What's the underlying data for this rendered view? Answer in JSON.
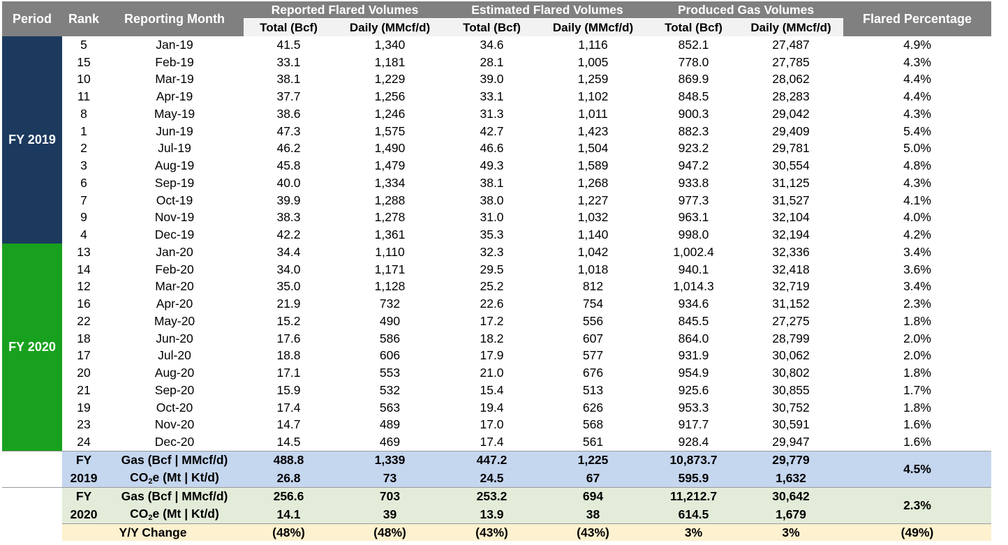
{
  "headers": {
    "period": "Period",
    "rank": "Rank",
    "month": "Reporting Month",
    "reported": "Reported Flared Volumes",
    "estimated": "Estimated Flared Volumes",
    "produced": "Produced Gas Volumes",
    "flared_pct": "Flared Percentage",
    "total": "Total (Bcf)",
    "daily": "Daily (MMcf/d)"
  },
  "periods": {
    "fy2019": "FY 2019",
    "fy2020": "FY 2020"
  },
  "colors": {
    "fy2019": "#1c3a5e",
    "fy2020": "#18a11e",
    "header": "#808080",
    "sum2019": "#c5d6ef",
    "sum2020": "#e3ecd9",
    "yoy": "#fdf1cf"
  },
  "rows2019": [
    [
      "5",
      "Jan-19",
      "41.5",
      "1,340",
      "34.6",
      "1,116",
      "852.1",
      "27,487",
      "4.9%"
    ],
    [
      "15",
      "Feb-19",
      "33.1",
      "1,181",
      "28.1",
      "1,005",
      "778.0",
      "27,785",
      "4.3%"
    ],
    [
      "10",
      "Mar-19",
      "38.1",
      "1,229",
      "39.0",
      "1,259",
      "869.9",
      "28,062",
      "4.4%"
    ],
    [
      "11",
      "Apr-19",
      "37.7",
      "1,256",
      "33.1",
      "1,102",
      "848.5",
      "28,283",
      "4.4%"
    ],
    [
      "8",
      "May-19",
      "38.6",
      "1,246",
      "31.3",
      "1,011",
      "900.3",
      "29,042",
      "4.3%"
    ],
    [
      "1",
      "Jun-19",
      "47.3",
      "1,575",
      "42.7",
      "1,423",
      "882.3",
      "29,409",
      "5.4%"
    ],
    [
      "2",
      "Jul-19",
      "46.2",
      "1,490",
      "46.6",
      "1,504",
      "923.2",
      "29,781",
      "5.0%"
    ],
    [
      "3",
      "Aug-19",
      "45.8",
      "1,479",
      "49.3",
      "1,589",
      "947.2",
      "30,554",
      "4.8%"
    ],
    [
      "6",
      "Sep-19",
      "40.0",
      "1,334",
      "38.1",
      "1,268",
      "933.8",
      "31,125",
      "4.3%"
    ],
    [
      "7",
      "Oct-19",
      "39.9",
      "1,288",
      "38.0",
      "1,227",
      "977.3",
      "31,527",
      "4.1%"
    ],
    [
      "9",
      "Nov-19",
      "38.3",
      "1,278",
      "31.0",
      "1,032",
      "963.1",
      "32,104",
      "4.0%"
    ],
    [
      "4",
      "Dec-19",
      "42.2",
      "1,361",
      "35.3",
      "1,140",
      "998.0",
      "32,194",
      "4.2%"
    ]
  ],
  "rows2020": [
    [
      "13",
      "Jan-20",
      "34.4",
      "1,110",
      "32.3",
      "1,042",
      "1,002.4",
      "32,336",
      "3.4%"
    ],
    [
      "14",
      "Feb-20",
      "34.0",
      "1,171",
      "29.5",
      "1,018",
      "940.1",
      "32,418",
      "3.6%"
    ],
    [
      "12",
      "Mar-20",
      "35.0",
      "1,128",
      "25.2",
      "812",
      "1,014.3",
      "32,719",
      "3.4%"
    ],
    [
      "16",
      "Apr-20",
      "21.9",
      "732",
      "22.6",
      "754",
      "934.6",
      "31,152",
      "2.3%"
    ],
    [
      "22",
      "May-20",
      "15.2",
      "490",
      "17.2",
      "556",
      "845.5",
      "27,275",
      "1.8%"
    ],
    [
      "18",
      "Jun-20",
      "17.6",
      "586",
      "18.2",
      "607",
      "864.0",
      "28,799",
      "2.0%"
    ],
    [
      "17",
      "Jul-20",
      "18.8",
      "606",
      "17.9",
      "577",
      "931.9",
      "30,062",
      "2.0%"
    ],
    [
      "20",
      "Aug-20",
      "17.1",
      "553",
      "21.0",
      "676",
      "954.9",
      "30,802",
      "1.8%"
    ],
    [
      "21",
      "Sep-20",
      "15.9",
      "532",
      "15.4",
      "513",
      "925.6",
      "30,855",
      "1.7%"
    ],
    [
      "19",
      "Oct-20",
      "17.4",
      "563",
      "19.4",
      "626",
      "953.3",
      "30,752",
      "1.8%"
    ],
    [
      "23",
      "Nov-20",
      "14.7",
      "489",
      "17.0",
      "568",
      "917.7",
      "30,591",
      "1.6%"
    ],
    [
      "24",
      "Dec-20",
      "14.5",
      "469",
      "17.4",
      "561",
      "928.4",
      "29,947",
      "1.6%"
    ]
  ],
  "summary": {
    "gas_label": "Gas (Bcf | MMcf/d)",
    "co2_label_pre": "CO",
    "co2_label_sub": "2",
    "co2_label_post": "e (Mt | Kt/d)",
    "fy2019": {
      "fy": "FY",
      "year": "2019",
      "gas": [
        "488.8",
        "1,339",
        "447.2",
        "1,225",
        "10,873.7",
        "29,779"
      ],
      "co2": [
        "26.8",
        "73",
        "24.5",
        "67",
        "595.9",
        "1,632"
      ],
      "pct": "4.5%"
    },
    "fy2020": {
      "fy": "FY",
      "year": "2020",
      "gas": [
        "256.6",
        "703",
        "253.2",
        "694",
        "11,212.7",
        "30,642"
      ],
      "co2": [
        "14.1",
        "39",
        "13.9",
        "38",
        "614.5",
        "1,679"
      ],
      "pct": "2.3%"
    },
    "yoy": {
      "label": "Y/Y Change",
      "values": [
        "(48%)",
        "(48%)",
        "(43%)",
        "(43%)",
        "3%",
        "3%",
        "(49%)"
      ]
    }
  }
}
